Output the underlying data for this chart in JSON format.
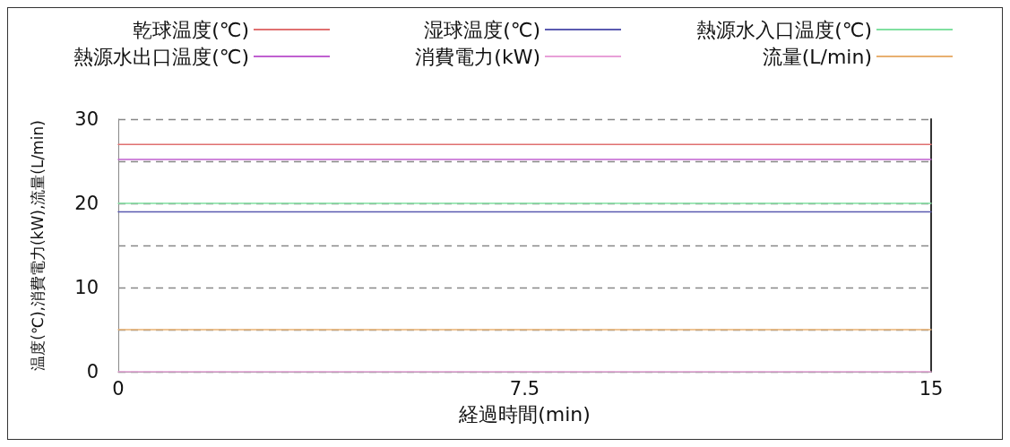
{
  "chart_data": {
    "type": "line",
    "xlabel": "経過時間(min)",
    "ylabel": "温度(℃),消費電力(kW),流量(L/min)",
    "x": [
      0,
      15
    ],
    "xlim": [
      0,
      15
    ],
    "xticks": [
      0,
      7.5,
      15
    ],
    "ylim": [
      0,
      30
    ],
    "yticks": [
      0,
      {
        "value": 5,
        "label": null
      },
      10,
      {
        "value": 15,
        "label": null
      },
      20,
      {
        "value": 25,
        "label": null
      },
      30
    ],
    "grid": "y",
    "legend": "top",
    "marker": "none",
    "line_style": "solid",
    "series": [
      {
        "name": "乾球温度(℃)",
        "color": "#e07070",
        "values": [
          27,
          27
        ]
      },
      {
        "name": "湿球温度(℃)",
        "color": "#5a5ab0",
        "values": [
          19,
          19
        ]
      },
      {
        "name": "熱源水入口温度(℃)",
        "color": "#80e0a0",
        "values": [
          20,
          20
        ]
      },
      {
        "name": "熱源水出口温度(℃)",
        "color": "#c060d0",
        "values": [
          25.2,
          25.2
        ]
      },
      {
        "name": "消費電力(kW)",
        "color": "#e8a0d8",
        "values": [
          0,
          0
        ]
      },
      {
        "name": "流量(L/min)",
        "color": "#e8b070",
        "values": [
          5,
          5
        ]
      }
    ]
  }
}
